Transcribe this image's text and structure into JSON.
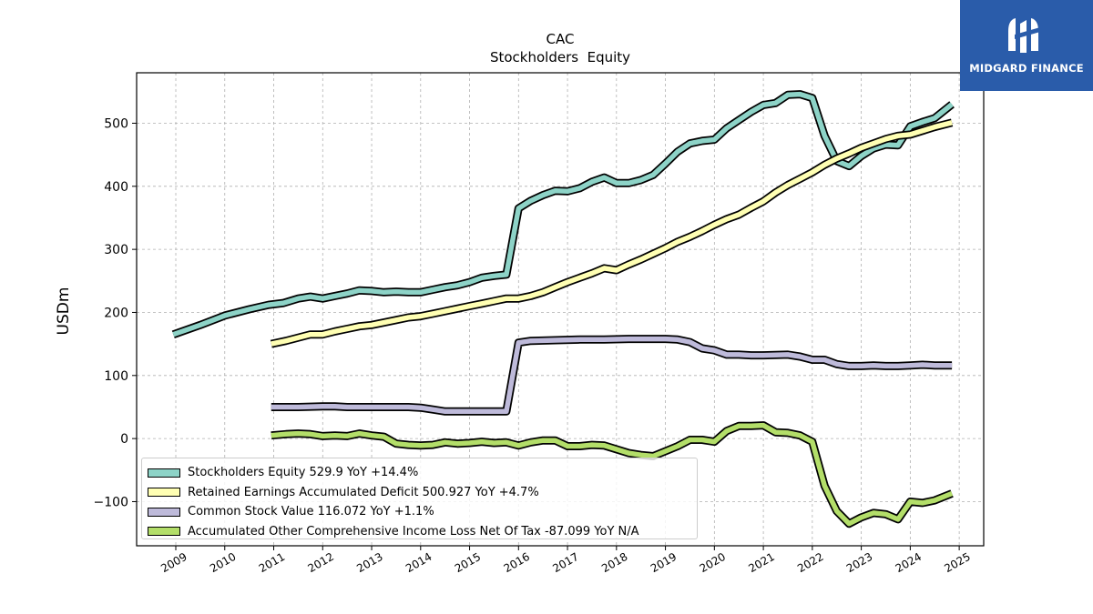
{
  "brand": {
    "name": "MIDGARD FINANCE",
    "bg_color": "#2a5caa"
  },
  "chart_data": {
    "type": "line",
    "title": "CAC",
    "subtitle": "Stockholders  Equity",
    "xlabel": "",
    "ylabel": "USDm",
    "xlim": [
      2008.2,
      2025.5
    ],
    "ylim": [
      -170,
      580
    ],
    "yticks": [
      -100,
      0,
      100,
      200,
      300,
      400,
      500
    ],
    "ytick_labels": [
      "−100",
      "0",
      "100",
      "200",
      "300",
      "400",
      "500"
    ],
    "xticks": [
      2009,
      2010,
      2011,
      2012,
      2013,
      2014,
      2015,
      2016,
      2017,
      2018,
      2019,
      2020,
      2021,
      2022,
      2023,
      2024,
      2025
    ],
    "xtick_labels": [
      "2009",
      "2010",
      "2011",
      "2012",
      "2013",
      "2014",
      "2015",
      "2016",
      "2017",
      "2018",
      "2019",
      "2020",
      "2021",
      "2022",
      "2023",
      "2024",
      "2025"
    ],
    "grid": true,
    "legend_position": "lower-left",
    "series": [
      {
        "name": "Stockholders Equity",
        "legend_label": "Stockholders Equity  529.9 YoY +14.4%",
        "color": "#8dd3c7",
        "x": [
          2008.95,
          2009.5,
          2010.0,
          2010.5,
          2010.9,
          2011.2,
          2011.5,
          2011.75,
          2012.0,
          2012.25,
          2012.5,
          2012.75,
          2013.0,
          2013.25,
          2013.5,
          2013.75,
          2014.0,
          2014.25,
          2014.5,
          2014.75,
          2015.0,
          2015.25,
          2015.5,
          2015.75,
          2016.0,
          2016.25,
          2016.5,
          2016.75,
          2017.0,
          2017.25,
          2017.5,
          2017.75,
          2018.0,
          2018.25,
          2018.5,
          2018.75,
          2019.0,
          2019.25,
          2019.5,
          2019.75,
          2020.0,
          2020.25,
          2020.5,
          2020.75,
          2021.0,
          2021.25,
          2021.5,
          2021.75,
          2022.0,
          2022.25,
          2022.5,
          2022.75,
          2023.0,
          2023.25,
          2023.5,
          2023.75,
          2024.0,
          2024.25,
          2024.5,
          2024.85
        ],
        "values": [
          165,
          180,
          195,
          205,
          212,
          215,
          222,
          225,
          222,
          226,
          230,
          235,
          234,
          232,
          233,
          232,
          232,
          236,
          240,
          243,
          248,
          255,
          258,
          260,
          365,
          377,
          386,
          393,
          392,
          397,
          407,
          414,
          405,
          405,
          410,
          418,
          436,
          455,
          468,
          472,
          474,
          492,
          505,
          518,
          529,
          532,
          545,
          546,
          540,
          480,
          440,
          432,
          448,
          460,
          466,
          465,
          495,
          502,
          508,
          530
        ]
      },
      {
        "name": "Retained Earnings Accumulated Deficit",
        "legend_label": "Retained Earnings Accumulated Deficit  500.927 YoY +4.7%",
        "color": "#ffffb3",
        "x": [
          2010.95,
          2011.25,
          2011.5,
          2011.75,
          2012.0,
          2012.25,
          2012.5,
          2012.75,
          2013.0,
          2013.25,
          2013.5,
          2013.75,
          2014.0,
          2014.25,
          2014.5,
          2014.75,
          2015.0,
          2015.25,
          2015.5,
          2015.75,
          2016.0,
          2016.25,
          2016.5,
          2016.75,
          2017.0,
          2017.25,
          2017.5,
          2017.75,
          2018.0,
          2018.25,
          2018.5,
          2018.75,
          2019.0,
          2019.25,
          2019.5,
          2019.75,
          2020.0,
          2020.25,
          2020.5,
          2020.75,
          2021.0,
          2021.25,
          2021.5,
          2021.75,
          2022.0,
          2022.25,
          2022.5,
          2022.75,
          2023.0,
          2023.25,
          2023.5,
          2023.75,
          2024.0,
          2024.25,
          2024.5,
          2024.85
        ],
        "values": [
          150,
          155,
          160,
          165,
          165,
          170,
          174,
          178,
          180,
          184,
          188,
          192,
          194,
          198,
          202,
          206,
          210,
          214,
          218,
          222,
          222,
          226,
          232,
          240,
          248,
          255,
          262,
          270,
          267,
          276,
          284,
          293,
          302,
          312,
          320,
          329,
          339,
          348,
          355,
          366,
          376,
          390,
          402,
          412,
          422,
          434,
          444,
          452,
          461,
          468,
          475,
          480,
          482,
          488,
          494,
          501
        ]
      },
      {
        "name": "Common Stock Value",
        "legend_label": "Common Stock Value  116.072 YoY +1.1%",
        "color": "#bebada",
        "x": [
          2010.95,
          2011.5,
          2012.0,
          2012.25,
          2012.5,
          2013.0,
          2013.5,
          2013.75,
          2014.0,
          2014.25,
          2014.5,
          2015.0,
          2015.5,
          2015.75,
          2016.0,
          2016.25,
          2016.75,
          2017.25,
          2017.75,
          2018.25,
          2018.75,
          2019.0,
          2019.25,
          2019.5,
          2019.75,
          2020.0,
          2020.25,
          2020.5,
          2020.75,
          2021.0,
          2021.5,
          2021.75,
          2022.0,
          2022.25,
          2022.5,
          2022.75,
          2023.0,
          2023.25,
          2023.5,
          2023.75,
          2024.0,
          2024.25,
          2024.5,
          2024.85
        ],
        "values": [
          50,
          50,
          51,
          51,
          50,
          50,
          50,
          50,
          49,
          46,
          43,
          43,
          43,
          43,
          152,
          155,
          156,
          157,
          157,
          158,
          158,
          158,
          157,
          153,
          143,
          140,
          133,
          133,
          132,
          132,
          133,
          130,
          125,
          125,
          118,
          115,
          115,
          116,
          115,
          115,
          116,
          117,
          116,
          116
        ]
      },
      {
        "name": "Accumulated Other Comprehensive Income Loss Net Of Tax",
        "legend_label": "Accumulated Other Comprehensive Income Loss Net Of Tax  -87.099 YoY N/A",
        "color": "#b3de69",
        "x": [
          2010.95,
          2011.25,
          2011.5,
          2011.75,
          2012.0,
          2012.25,
          2012.5,
          2012.75,
          2013.0,
          2013.25,
          2013.5,
          2013.75,
          2014.0,
          2014.25,
          2014.5,
          2014.75,
          2015.0,
          2015.25,
          2015.5,
          2015.75,
          2016.0,
          2016.25,
          2016.5,
          2016.75,
          2017.0,
          2017.25,
          2017.5,
          2017.75,
          2018.0,
          2018.25,
          2018.5,
          2018.75,
          2019.0,
          2019.25,
          2019.5,
          2019.75,
          2020.0,
          2020.25,
          2020.5,
          2020.75,
          2021.0,
          2021.25,
          2021.5,
          2021.75,
          2022.0,
          2022.25,
          2022.5,
          2022.75,
          2023.0,
          2023.25,
          2023.5,
          2023.75,
          2024.0,
          2024.25,
          2024.5,
          2024.85
        ],
        "values": [
          5,
          7,
          8,
          7,
          4,
          5,
          4,
          8,
          5,
          3,
          -8,
          -10,
          -11,
          -10,
          -6,
          -8,
          -7,
          -5,
          -7,
          -6,
          -11,
          -6,
          -3,
          -3,
          -12,
          -12,
          -10,
          -11,
          -17,
          -23,
          -26,
          -28,
          -20,
          -12,
          -2,
          -2,
          -5,
          12,
          20,
          20,
          21,
          10,
          9,
          5,
          -5,
          -75,
          -115,
          -135,
          -125,
          -118,
          -120,
          -128,
          -100,
          -102,
          -98,
          -87
        ]
      }
    ]
  }
}
